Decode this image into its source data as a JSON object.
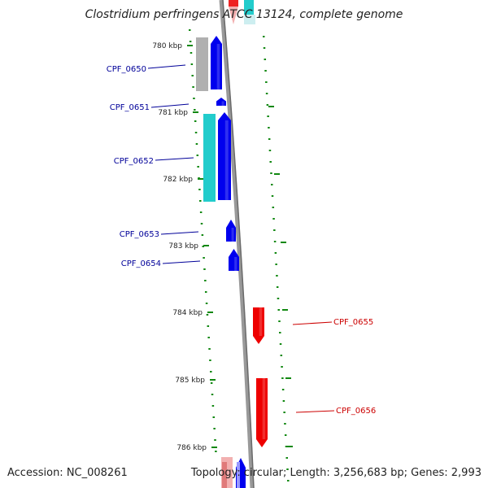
{
  "title": "Clostridium perfringens ATCC 13124, complete genome",
  "accession_label": "Accession: NC_008261",
  "summary_label": "Topology: circular; Length: 3,256,683 bp; Genes: 2,993",
  "colors": {
    "forward_gene": "#0000ee",
    "reverse_gene": "#ee0000",
    "cds_teal": "#22cccc",
    "cds_grey": "#b0b0b0",
    "backbone": "#888888",
    "tick": "#118811",
    "label_forward": "#000099",
    "label_reverse": "#cc0000"
  },
  "ticks": [
    {
      "label": "780 kbp"
    },
    {
      "label": "781 kbp"
    },
    {
      "label": "782 kbp"
    },
    {
      "label": "783 kbp"
    },
    {
      "label": "784 kbp"
    },
    {
      "label": "785 kbp"
    },
    {
      "label": "786 kbp"
    }
  ],
  "genes": [
    {
      "name": "CPF_0650",
      "strand": "forward"
    },
    {
      "name": "CPF_0651",
      "strand": "forward"
    },
    {
      "name": "CPF_0652",
      "strand": "forward"
    },
    {
      "name": "CPF_0653",
      "strand": "forward"
    },
    {
      "name": "CPF_0654",
      "strand": "forward"
    },
    {
      "name": "CPF_0655",
      "strand": "reverse"
    },
    {
      "name": "CPF_0656",
      "strand": "reverse"
    }
  ]
}
